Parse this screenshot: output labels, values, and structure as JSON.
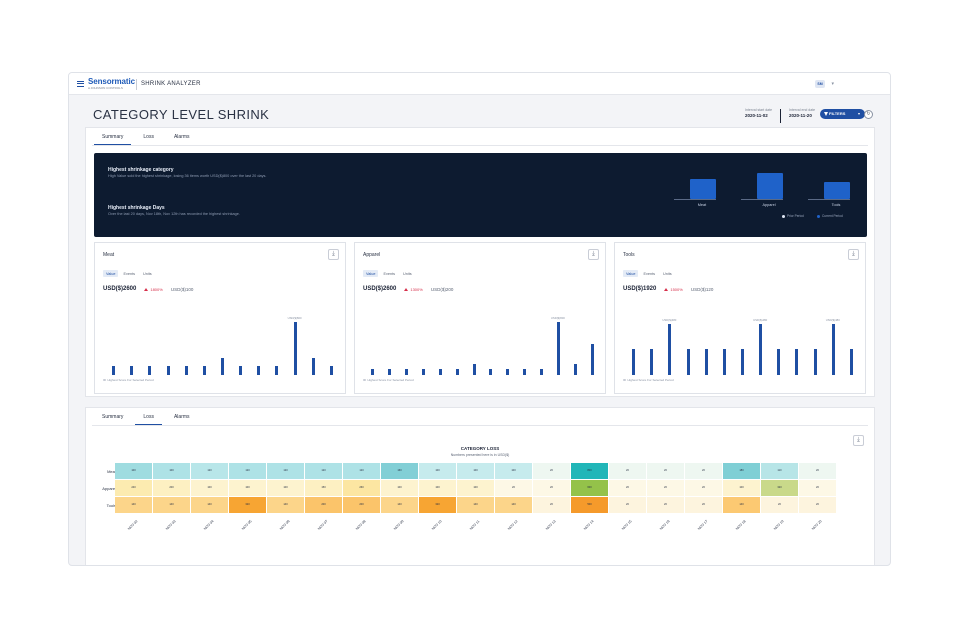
{
  "topbar": {
    "brand": "Sensormatic",
    "brand_sub": "A JOHNSON CONTROLS",
    "app_title": "SHRINK ANALYZER",
    "avatar": "SM"
  },
  "header": {
    "title": "CATEGORY LEVEL SHRINK",
    "start_label": "Interval start date",
    "start_value": "2020-11-02",
    "end_label": "Interval end date",
    "end_value": "2020-11-20",
    "filter_label": "FILTERS"
  },
  "top_tabs": [
    "Summary",
    "Loss",
    "Alarms"
  ],
  "hero": {
    "h1": "Highest shrinkage category",
    "p1": "High Value sold the highest shrinkage, losing 36 items worth USD($)800 over the last 20 days.",
    "h2": "Highest shrinkage Days",
    "p2": "Over the last 20 days, Nov 18th, Nov 12th has recorded the highest shrinkage.",
    "categories": [
      "Meat",
      "Apparel",
      "Tools"
    ],
    "bars_current": [
      0.55,
      0.72,
      0.48
    ],
    "legend_prior": "Prior Period",
    "legend_current": "Current Period"
  },
  "cards": [
    {
      "title": "Meat",
      "segments": [
        "Value",
        "Events",
        "Units"
      ],
      "value": "USD($)2600",
      "pct": "1800%",
      "prev": "USD($)100",
      "peak_label": "USD($)800",
      "bars": [
        0.14,
        0.14,
        0.14,
        0.14,
        0.14,
        0.14,
        0.28,
        0.14,
        0.14,
        0.14,
        0.86,
        0.28,
        0.14
      ],
      "legend": "Highest Score For Selected Period"
    },
    {
      "title": "Apparel",
      "segments": [
        "Value",
        "Events",
        "Units"
      ],
      "value": "USD($)2600",
      "pct": "1300%",
      "prev": "USD($)200",
      "peak_label": "USD($)800",
      "bars": [
        0.1,
        0.1,
        0.1,
        0.1,
        0.1,
        0.1,
        0.18,
        0.1,
        0.1,
        0.1,
        0.1,
        0.86,
        0.18,
        0.5
      ],
      "legend": "Highest Score For Selected Period"
    },
    {
      "title": "Tools",
      "segments": [
        "Value",
        "Events",
        "Units"
      ],
      "value": "USD($)1920",
      "pct": "1500%",
      "prev": "USD($)120",
      "peak_label": "USD($)480",
      "bars": [
        0.42,
        0.42,
        0.82,
        0.42,
        0.42,
        0.42,
        0.42,
        0.82,
        0.42,
        0.42,
        0.42,
        0.82,
        0.42
      ],
      "legend": "Highest Score For Selected Period"
    }
  ],
  "bottom_tabs": [
    "Summary",
    "Loss",
    "Alarms"
  ],
  "heatmap": {
    "title": "CATEGORY LOSS",
    "subtitle": "Numbers presented here is in USD($)",
    "rows": [
      "Meat",
      "Apparel",
      "Tools"
    ],
    "cols": [
      "NOV 02",
      "NOV 03",
      "NOV 04",
      "NOV 05",
      "NOV 06",
      "NOV 07",
      "NOV 08",
      "NOV 09",
      "NOV 10",
      "NOV 11",
      "NOV 12",
      "NOV 13",
      "NOV 14",
      "NOV 15",
      "NOV 16",
      "NOV 17",
      "NOV 18",
      "NOV 19",
      "NOV 20"
    ],
    "values": [
      [
        "100",
        "100",
        "120",
        "120",
        "120",
        "120",
        "120",
        "160",
        "100",
        "100",
        "100",
        "20",
        "800",
        "20",
        "20",
        "20",
        "180",
        "110",
        "20"
      ],
      [
        "240",
        "200",
        "100",
        "100",
        "100",
        "150",
        "260",
        "100",
        "100",
        "100",
        "20",
        "20",
        "600",
        "20",
        "20",
        "20",
        "100",
        "320",
        "20"
      ],
      [
        "140",
        "140",
        "140",
        "320",
        "140",
        "200",
        "200",
        "140",
        "320",
        "140",
        "140",
        "20",
        "500",
        "20",
        "20",
        "20",
        "140",
        "20",
        "20"
      ]
    ],
    "colors": [
      [
        "#9fdce0",
        "#aee2e6",
        "#b8e6e9",
        "#aee2e6",
        "#aee2e6",
        "#aee2e6",
        "#aee2e6",
        "#82cfd6",
        "#c6ebed",
        "#c6ebed",
        "#c6ebed",
        "#eef7f1",
        "#21b6b8",
        "#eef7f1",
        "#eef7f1",
        "#eef7f1",
        "#7fcfd5",
        "#b7e5e7",
        "#eef7f1"
      ],
      [
        "#fcebb0",
        "#fdf0c2",
        "#fdf3cf",
        "#fdf3cf",
        "#fdf3cf",
        "#fdf0c2",
        "#fce6a2",
        "#fdf3cf",
        "#fdf3cf",
        "#fdf3cf",
        "#fdf8e6",
        "#fdf8e6",
        "#94c24a",
        "#fdf8e6",
        "#fdf8e6",
        "#fdf8e6",
        "#fdf3cf",
        "#c9d98a",
        "#fdf8e6"
      ],
      [
        "#fcd58a",
        "#fcd58a",
        "#fcd58a",
        "#f7a533",
        "#fcd58a",
        "#fbc46a",
        "#fbc46a",
        "#fcd58a",
        "#f7a533",
        "#fcd58a",
        "#fcd58a",
        "#fdf4de",
        "#f59a2b",
        "#fdf4de",
        "#fdf4de",
        "#fdf4de",
        "#fcc972",
        "#fdf4de",
        "#fdf4de"
      ]
    ]
  }
}
